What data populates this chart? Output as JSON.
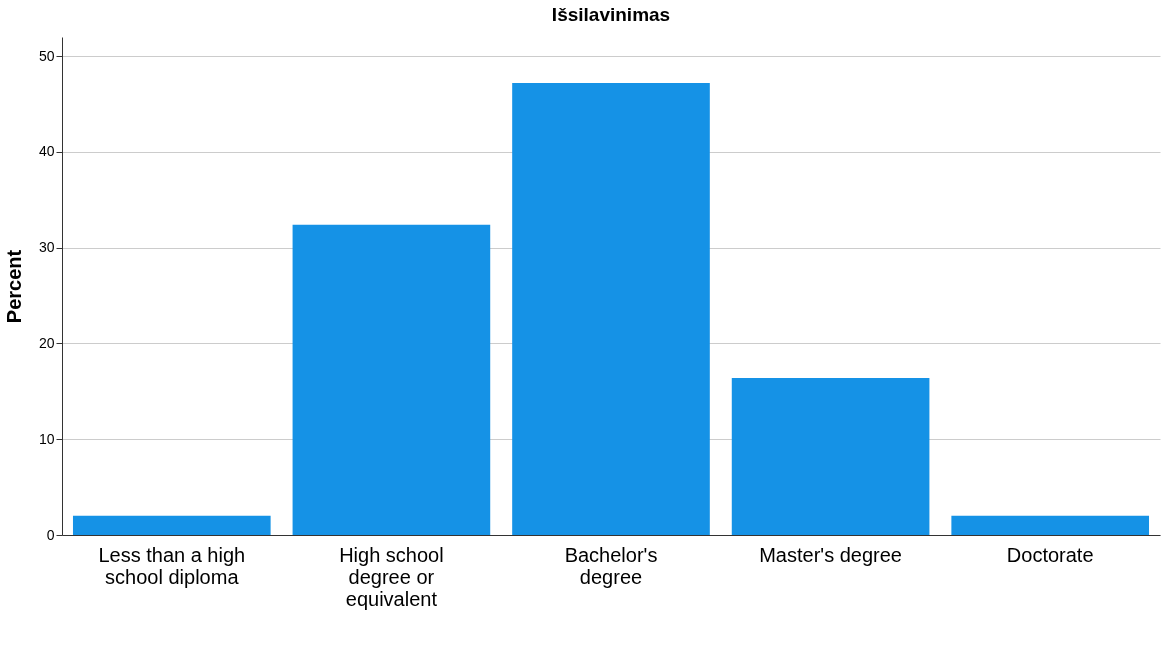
{
  "chart_data": {
    "type": "bar",
    "title": "Išsilavinimas",
    "ylabel": "Percent",
    "categories": [
      "Less than a high school diploma",
      "High school degree or equivalent",
      "Bachelor's degree",
      "Master's degree",
      "Doctorate"
    ],
    "values": [
      2.0,
      32.4,
      47.2,
      16.4,
      2.0
    ],
    "color": "#1592e6",
    "ylim": [
      0,
      52
    ],
    "yticks": [
      0,
      10,
      20,
      30,
      40,
      50
    ],
    "grid": "y"
  }
}
